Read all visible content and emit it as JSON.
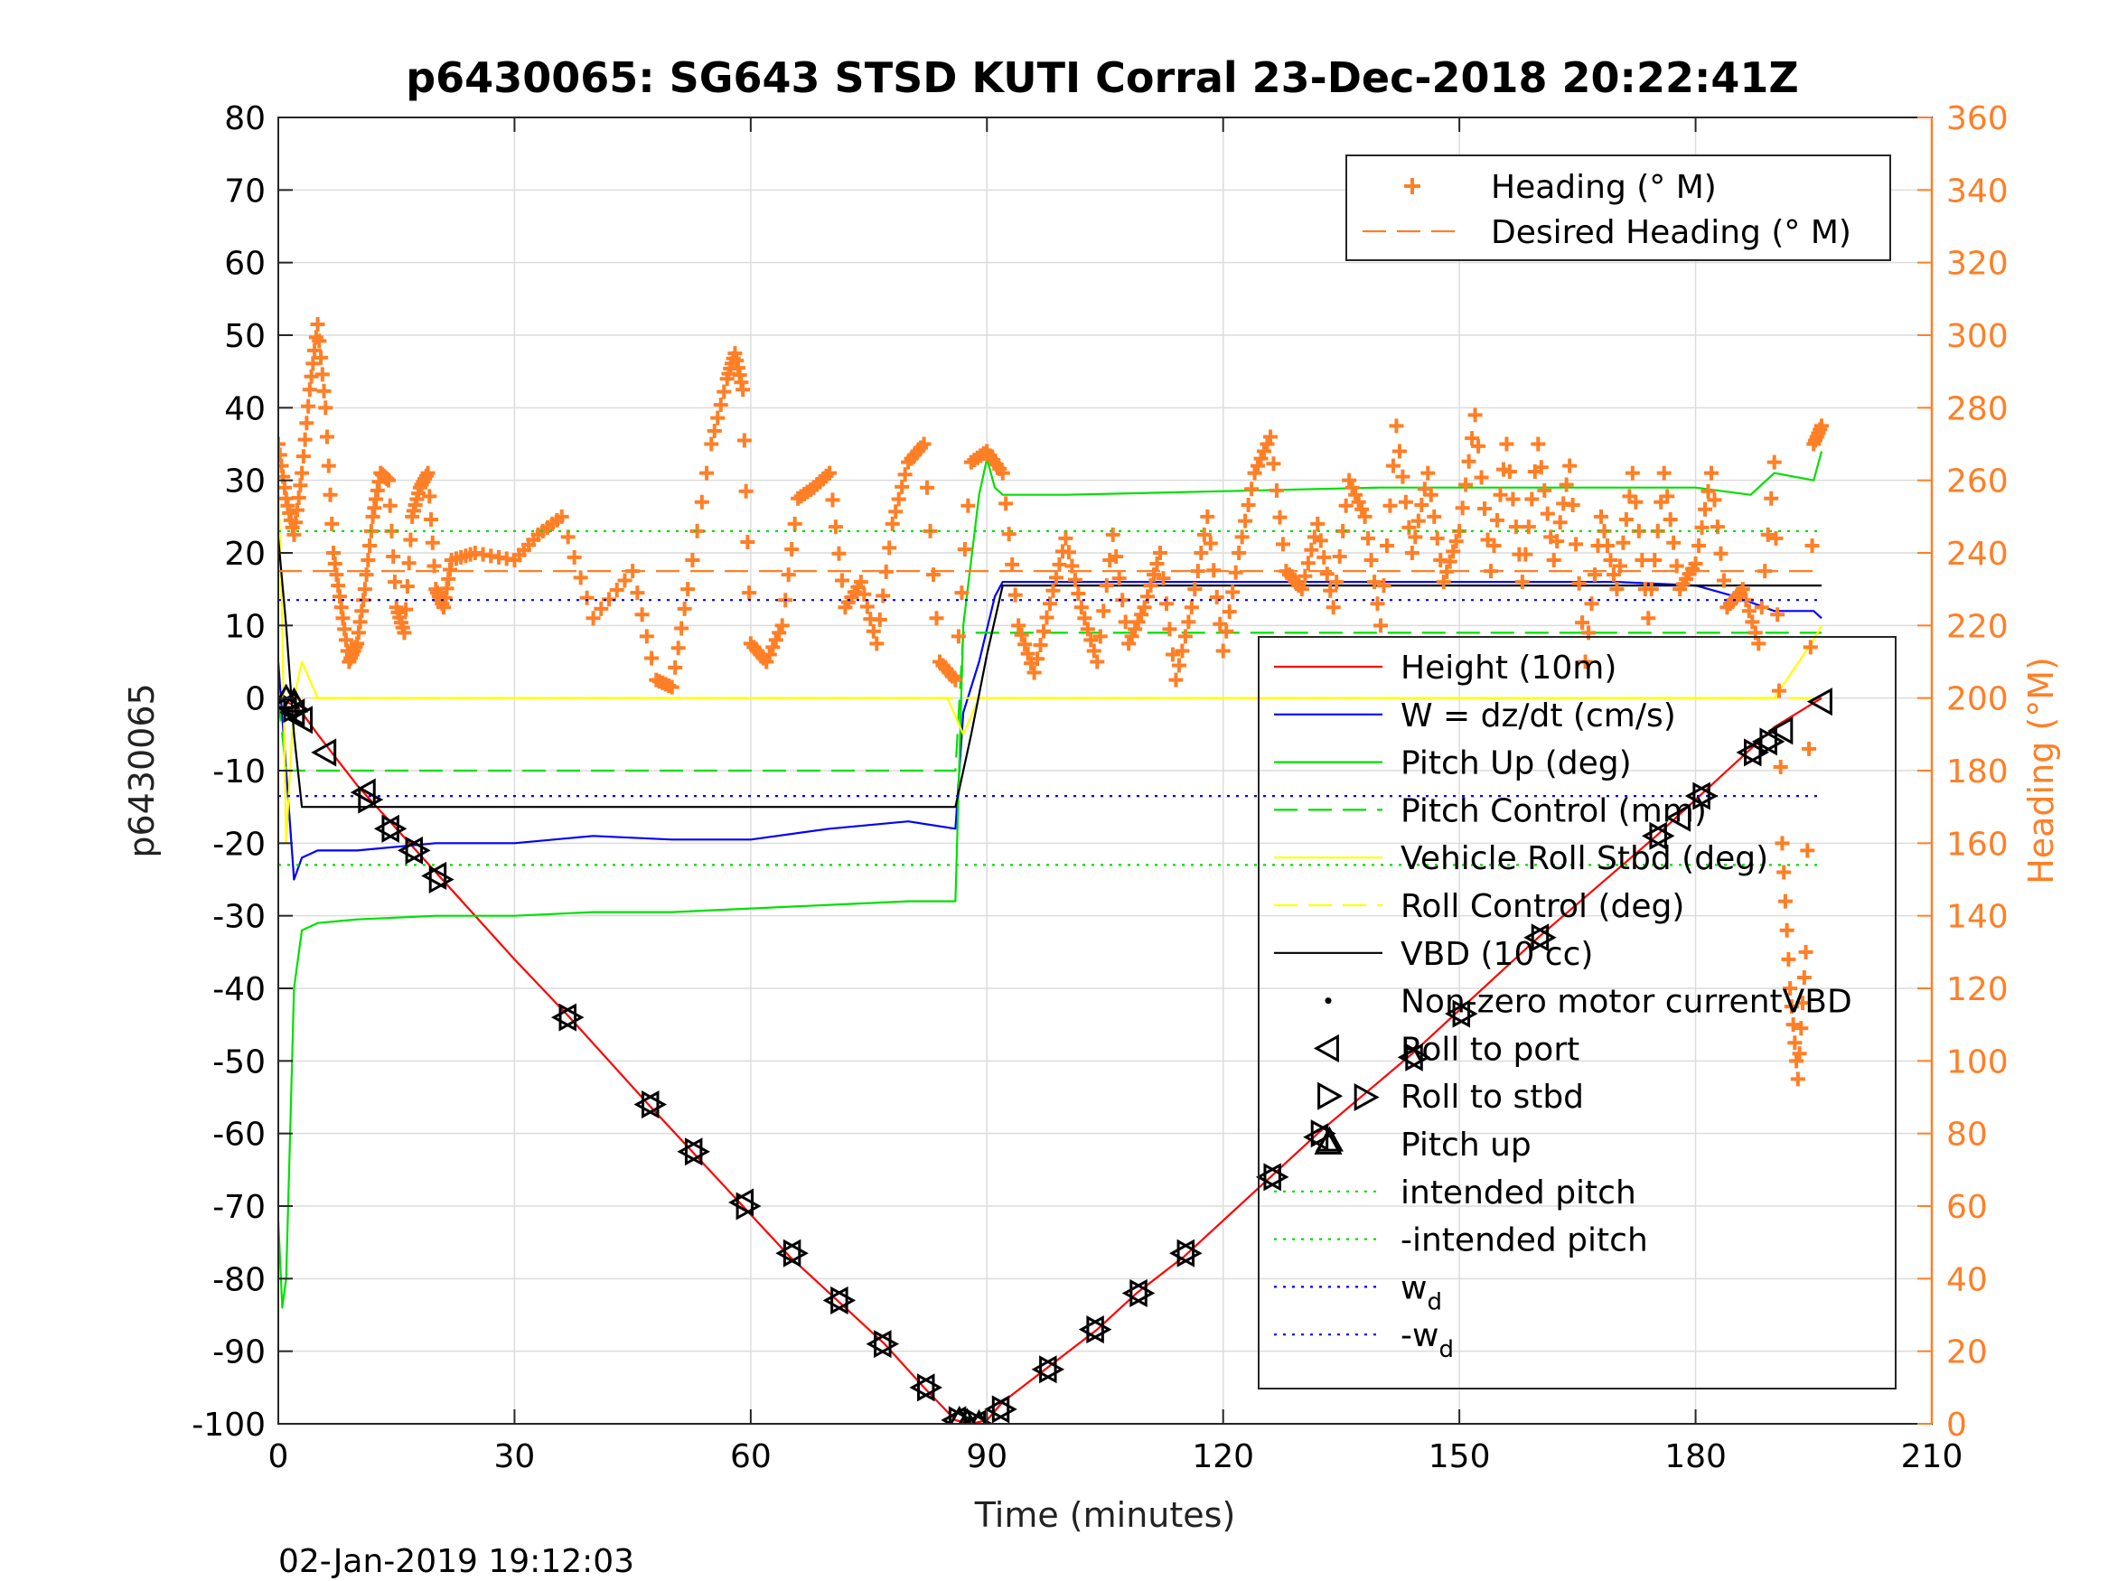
{
  "chart_data": {
    "type": "line",
    "title": "p6430065: SG643 STSD KUTI Corral 23-Dec-2018 20:22:41Z",
    "xlabel": "Time (minutes)",
    "ylabel": "p6430065",
    "ylabel_right": "Heading (°M)",
    "footer": "02-Jan-2019 19:12:03",
    "xlim": [
      0,
      210
    ],
    "ylim": [
      -100,
      80
    ],
    "ylim_right": [
      0,
      360
    ],
    "x_ticks": [
      "0",
      "30",
      "60",
      "90",
      "120",
      "150",
      "180",
      "210"
    ],
    "y_ticks": [
      "-100",
      "-90",
      "-80",
      "-70",
      "-60",
      "-50",
      "-40",
      "-30",
      "-20",
      "-10",
      "0",
      "10",
      "20",
      "30",
      "40",
      "50",
      "60",
      "70",
      "80"
    ],
    "y_ticks_right": [
      "0",
      "20",
      "40",
      "60",
      "80",
      "100",
      "120",
      "140",
      "160",
      "180",
      "200",
      "220",
      "240",
      "260",
      "280",
      "300",
      "320",
      "340",
      "360"
    ],
    "grid": true,
    "legend_top": {
      "placement": "top-right",
      "entries": [
        {
          "label": "Heading (° M)",
          "color": "#ff7f26",
          "style": "plus"
        },
        {
          "label": "Desired Heading (° M)",
          "color": "#ff7f26",
          "style": "dashed"
        }
      ]
    },
    "legend_main": {
      "placement": "right",
      "entries": [
        {
          "label": "Height (10m)",
          "color": "#ff0000",
          "style": "solid"
        },
        {
          "label": "W = dz/dt (cm/s)",
          "color": "#0000ff",
          "style": "solid"
        },
        {
          "label": "Pitch Up (deg)",
          "color": "#00e000",
          "style": "solid"
        },
        {
          "label": "Pitch Control (mm)",
          "color": "#00e000",
          "style": "dashed"
        },
        {
          "label": "Vehicle Roll Stbd (deg)",
          "color": "#ffff00",
          "style": "solid"
        },
        {
          "label": "Roll Control (deg)",
          "color": "#ffff00",
          "style": "dashed"
        },
        {
          "label": "VBD (10 cc)",
          "color": "#000000",
          "style": "solid"
        },
        {
          "label": "Non-zero motor currentVBD",
          "color": "#000000",
          "style": "dot"
        },
        {
          "label": "Roll to port",
          "color": "#000000",
          "style": "tri-left"
        },
        {
          "label": "Roll to stbd",
          "color": "#000000",
          "style": "tri-right"
        },
        {
          "label": "Pitch up",
          "color": "#000000",
          "style": "tri-up"
        },
        {
          "label": "intended pitch",
          "color": "#00e000",
          "style": "dotted"
        },
        {
          "label": "-intended pitch",
          "color": "#00e000",
          "style": "dotted"
        },
        {
          "label": "w",
          "sub": "d",
          "color": "#0000ff",
          "style": "dotted"
        },
        {
          "label": "-w",
          "sub": "d",
          "color": "#0000ff",
          "style": "dotted"
        }
      ]
    },
    "series": [
      {
        "name": "Height (10m)",
        "color": "#ff0000",
        "axis": "left",
        "x": [
          0,
          1,
          2,
          3,
          5,
          10,
          15,
          20,
          30,
          37,
          47,
          53,
          59,
          65,
          71,
          77,
          82,
          86,
          88,
          90,
          92,
          98,
          104,
          109,
          115,
          126,
          132,
          144,
          150,
          160,
          175,
          180,
          187,
          190,
          196
        ],
        "y": [
          0,
          -0.5,
          -1,
          -2,
          -5,
          -12,
          -18,
          -24,
          -36,
          -44,
          -56,
          -63,
          -70,
          -77,
          -83,
          -89,
          -95,
          -99.5,
          -100,
          -99.5,
          -97,
          -92,
          -87,
          -82,
          -77,
          -66,
          -60,
          -49,
          -43,
          -33,
          -19,
          -14,
          -7,
          -4,
          0
        ]
      },
      {
        "name": "W = dz/dt (cm/s)",
        "color": "#0000ff",
        "axis": "left",
        "x": [
          0,
          1,
          2,
          3,
          5,
          10,
          20,
          30,
          40,
          50,
          60,
          70,
          80,
          86,
          87,
          89,
          91,
          92,
          95,
          100,
          110,
          120,
          130,
          140,
          150,
          160,
          170,
          180,
          185,
          190,
          195,
          196
        ],
        "y": [
          5,
          -10,
          -25,
          -22,
          -21,
          -21,
          -20,
          -20,
          -19,
          -19.5,
          -19.5,
          -18,
          -17,
          -18,
          -2,
          5,
          14,
          16,
          16,
          16,
          16,
          16,
          16,
          16,
          16,
          16,
          16,
          15.5,
          14,
          12,
          12,
          11
        ]
      },
      {
        "name": "Pitch Up (deg)",
        "color": "#00e000",
        "axis": "left",
        "x": [
          0,
          0.5,
          1,
          1.5,
          2,
          3,
          5,
          10,
          20,
          30,
          40,
          50,
          60,
          70,
          80,
          86,
          87,
          89,
          90,
          91,
          92,
          95,
          100,
          120,
          140,
          160,
          180,
          187,
          190,
          195,
          196
        ],
        "y": [
          -72,
          -84,
          -80,
          -60,
          -40,
          -32,
          -31,
          -30.5,
          -30,
          -30,
          -29.5,
          -29.5,
          -29,
          -28.5,
          -28,
          -28,
          10,
          28,
          33,
          29,
          28,
          28,
          28,
          28.5,
          29,
          29,
          29,
          28,
          31,
          30,
          34
        ]
      },
      {
        "name": "Pitch Control (mm)",
        "color": "#00e000",
        "axis": "left",
        "dash": true,
        "x": [
          0,
          1,
          2,
          86,
          87,
          196
        ],
        "y": [
          0,
          -10,
          -10,
          -10,
          9,
          9
        ]
      },
      {
        "name": "Vehicle Roll Stbd (deg)",
        "color": "#ffff00",
        "axis": "left",
        "x": [
          0,
          0.5,
          1,
          2,
          3,
          5,
          10,
          20,
          30,
          40,
          50,
          60,
          70,
          80,
          85,
          87,
          89,
          90,
          92,
          100,
          120,
          140,
          160,
          180,
          190,
          195,
          196
        ],
        "y": [
          30,
          10,
          -20,
          0,
          5,
          0,
          0,
          0,
          0,
          0,
          0,
          0,
          0,
          0,
          0,
          -5,
          0,
          0,
          0,
          0,
          0,
          0,
          0,
          0,
          0,
          8,
          10
        ]
      },
      {
        "name": "Roll Control (deg)",
        "color": "#ffff00",
        "axis": "left",
        "dash": true,
        "x": [
          0,
          196
        ],
        "y": [
          0,
          0
        ]
      },
      {
        "name": "VBD (10 cc)",
        "color": "#000000",
        "axis": "left",
        "x": [
          0,
          1,
          2,
          3,
          86,
          88,
          90,
          92,
          196
        ],
        "y": [
          22,
          10,
          -5,
          -15,
          -15,
          -5,
          6,
          15.5,
          15.5
        ]
      },
      {
        "name": "Heading (° M)",
        "color": "#ff7f26",
        "axis": "right",
        "marker": "plus",
        "x": [
          0,
          1,
          2,
          3,
          4,
          5,
          6,
          7,
          8,
          9,
          10,
          11,
          12,
          13,
          14,
          15,
          16,
          17,
          18,
          19,
          20,
          21,
          22,
          25,
          30,
          33,
          36,
          40,
          45,
          48,
          50,
          52,
          55,
          57,
          58,
          59,
          60,
          62,
          64,
          66,
          68,
          70,
          72,
          74,
          76,
          78,
          80,
          82,
          84,
          86,
          88,
          90,
          92,
          94,
          96,
          98,
          100,
          102,
          104,
          106,
          108,
          110,
          112,
          114,
          116,
          118,
          120,
          122,
          124,
          126,
          128,
          130,
          132,
          134,
          136,
          138,
          140,
          142,
          144,
          146,
          148,
          150,
          152,
          154,
          156,
          158,
          160,
          162,
          164,
          166,
          168,
          170,
          172,
          174,
          176,
          178,
          180,
          182,
          184,
          186,
          188,
          190,
          191,
          192,
          193,
          194,
          195,
          196
        ],
        "y": [
          270,
          255,
          245,
          262,
          285,
          303,
          280,
          240,
          225,
          210,
          215,
          230,
          250,
          262,
          260,
          225,
          218,
          250,
          258,
          262,
          230,
          225,
          238,
          240,
          238,
          245,
          250,
          222,
          235,
          205,
          203,
          230,
          270,
          288,
          295,
          285,
          215,
          210,
          220,
          255,
          258,
          262,
          225,
          232,
          215,
          248,
          265,
          270,
          210,
          205,
          265,
          268,
          262,
          220,
          207,
          226,
          244,
          225,
          210,
          245,
          215,
          225,
          240,
          205,
          225,
          250,
          213,
          240,
          262,
          272,
          235,
          230,
          248,
          225,
          260,
          250,
          220,
          275,
          240,
          262,
          232,
          246,
          278,
          235,
          270,
          232,
          270,
          238,
          264,
          210,
          250,
          230,
          262,
          222,
          262,
          230,
          237,
          262,
          225,
          230,
          215,
          265,
          160,
          120,
          95,
          130,
          270,
          275
        ]
      },
      {
        "name": "Desired Heading (° M)",
        "color": "#ff7f26",
        "axis": "right",
        "dash": true,
        "x": [
          0,
          196
        ],
        "y": [
          235,
          235
        ]
      },
      {
        "name": "intended pitch",
        "color": "#00e000",
        "axis": "left",
        "dotted": true,
        "x": [
          0,
          196
        ],
        "y": [
          23,
          23
        ]
      },
      {
        "name": "-intended pitch",
        "color": "#00e000",
        "axis": "left",
        "dotted": true,
        "x": [
          0,
          196
        ],
        "y": [
          -23,
          -23
        ]
      },
      {
        "name": "w_d",
        "color": "#0000ff",
        "axis": "left",
        "dotted": true,
        "x": [
          0,
          196
        ],
        "y": [
          13.5,
          13.5
        ]
      },
      {
        "name": "-w_d",
        "color": "#0000ff",
        "axis": "left",
        "dotted": true,
        "x": [
          0,
          196
        ],
        "y": [
          -13.5,
          -13.5
        ]
      }
    ],
    "markers": {
      "roll_to_port": {
        "x": [
          1,
          2,
          3,
          6,
          11,
          14,
          17,
          20,
          36.5,
          47,
          52.5,
          59,
          65,
          71,
          76.5,
          82,
          86,
          88.5,
          91.5,
          97.5,
          103.5,
          109,
          115,
          126,
          132,
          144,
          150,
          160,
          175,
          178,
          180.5,
          187,
          189,
          191,
          196
        ],
        "y": [
          -1,
          -2,
          -3,
          -7.5,
          -13,
          -18,
          -21,
          -24.5,
          -44,
          -56,
          -62.5,
          -69.5,
          -76.5,
          -83,
          -89,
          -95,
          -99.5,
          -100,
          -98,
          -92.5,
          -87,
          -82,
          -76.5,
          -66,
          -60.5,
          -49.5,
          -43.5,
          -33,
          -19,
          -16.5,
          -13.5,
          -7.5,
          -6,
          -4.5,
          -0.5
        ]
      },
      "roll_to_stbd": {
        "x": [
          2,
          11.5,
          14.5,
          17.5,
          20.5,
          37,
          47.5,
          53,
          59.5,
          65.5,
          71.5,
          77,
          82.5,
          86.5,
          89,
          92,
          98,
          104,
          109.5,
          115.5,
          126.5,
          132.5,
          138,
          144.5,
          150.5,
          160.5,
          175.5,
          181,
          187.5,
          189.5
        ],
        "y": [
          -1.5,
          -14,
          -18,
          -21,
          -25,
          -44,
          -56,
          -62.5,
          -70,
          -76.5,
          -83,
          -89,
          -95,
          -99.5,
          -100,
          -98,
          -92.5,
          -87,
          -82,
          -76.5,
          -66,
          -60,
          -55,
          -49.5,
          -43.5,
          -33,
          -19,
          -13.5,
          -7.5,
          -6
        ]
      },
      "pitch_up": {
        "x": [
          1,
          2,
          86.5,
          87.5,
          89,
          133.5
        ],
        "y": [
          0,
          -0.5,
          -99.5,
          -99.8,
          -100,
          -61
        ]
      }
    }
  }
}
